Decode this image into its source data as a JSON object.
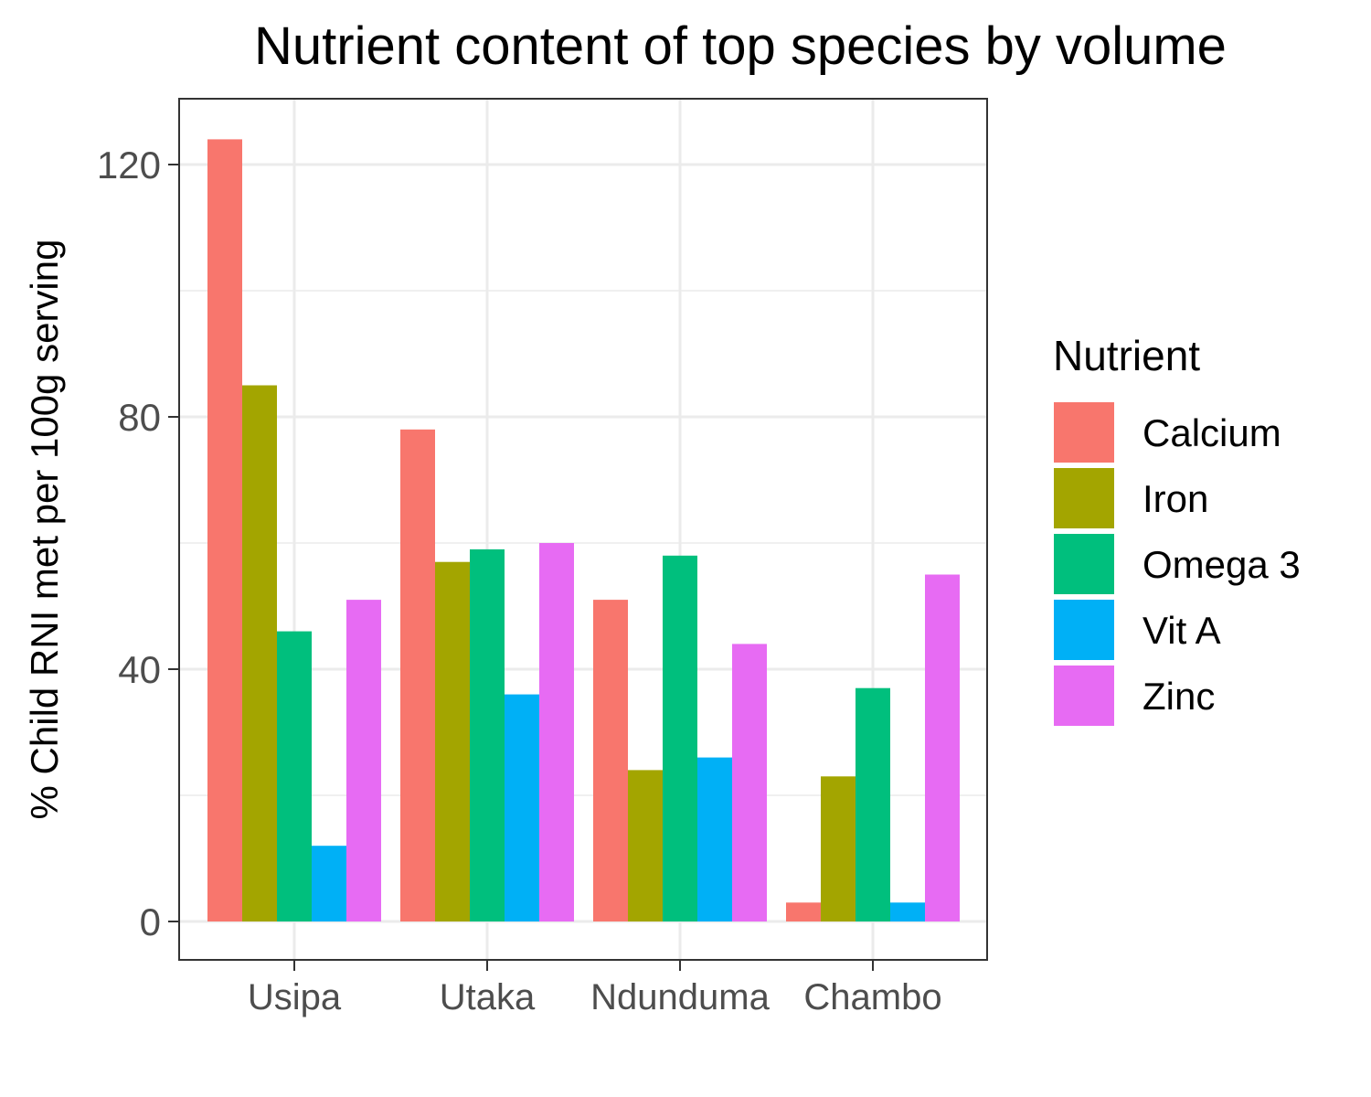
{
  "chart_data": {
    "type": "bar",
    "title": "Nutrient content of top species by volume",
    "xlabel": "",
    "ylabel": "% Child RNI met per 100g serving",
    "categories": [
      "Usipa",
      "Utaka",
      "Ndunduma",
      "Chambo"
    ],
    "yticks": [
      "0",
      "40",
      "80",
      "120"
    ],
    "ylim": [
      -6,
      130
    ],
    "grid": true,
    "legend": {
      "title": "Nutrient",
      "position": "right"
    },
    "series": [
      {
        "name": "Calcium",
        "color": "#F8766D",
        "values": [
          124,
          78,
          51,
          3
        ]
      },
      {
        "name": "Iron",
        "color": "#A3A500",
        "values": [
          85,
          57,
          24,
          23
        ]
      },
      {
        "name": "Omega 3",
        "color": "#00BF7D",
        "values": [
          46,
          59,
          58,
          37
        ]
      },
      {
        "name": "Vit A",
        "color": "#00B0F6",
        "values": [
          12,
          36,
          26,
          3
        ]
      },
      {
        "name": "Zinc",
        "color": "#E76BF3",
        "values": [
          51,
          60,
          44,
          55
        ]
      }
    ]
  }
}
